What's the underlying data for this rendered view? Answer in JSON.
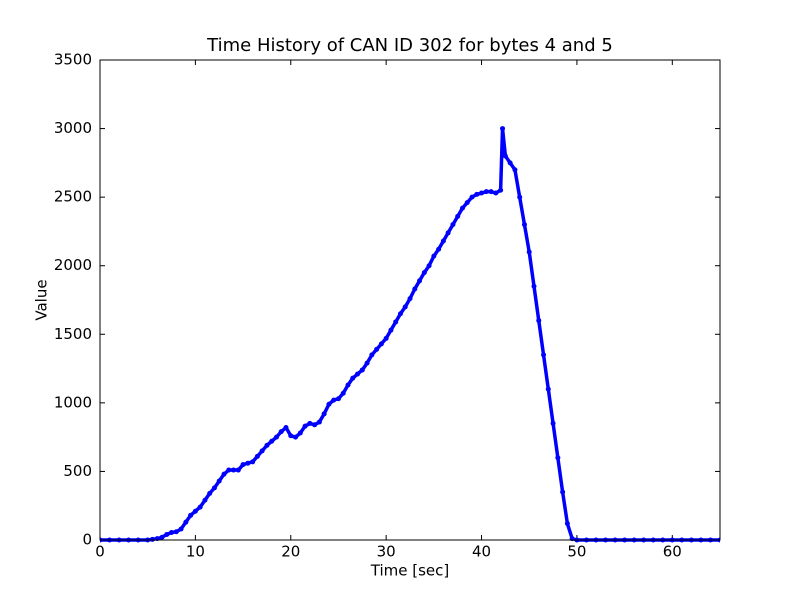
{
  "chart_data": {
    "type": "line",
    "marker": true,
    "title": "Time History of CAN ID 302 for bytes 4 and 5",
    "x_label": "Time [sec]",
    "y_label": "Value",
    "color": "#0000ff",
    "x": [
      0,
      1,
      2,
      3,
      4,
      5,
      5.5,
      6,
      6.5,
      7,
      7.5,
      8,
      8.5,
      9,
      9.5,
      10,
      10.5,
      11,
      11.5,
      12,
      12.5,
      13,
      13.5,
      14,
      14.5,
      15,
      15.5,
      16,
      16.5,
      17,
      17.5,
      18,
      18.5,
      19,
      19.5,
      20,
      20.5,
      21,
      21.5,
      22,
      22.5,
      23,
      23.5,
      24,
      24.5,
      25,
      25.5,
      26,
      26.5,
      27,
      27.5,
      28,
      28.5,
      29,
      29.5,
      30,
      30.5,
      31,
      31.5,
      32,
      32.5,
      33,
      33.5,
      34,
      34.5,
      35,
      35.5,
      36,
      36.5,
      37,
      37.5,
      38,
      38.5,
      39,
      39.5,
      40,
      40.5,
      41,
      41.5,
      42,
      42.2,
      42.5,
      43,
      43.5,
      44,
      44.5,
      45,
      45.5,
      46,
      46.5,
      47,
      47.5,
      48,
      48.5,
      49,
      49.5,
      50,
      51,
      52,
      53,
      54,
      55,
      56,
      57,
      58,
      59,
      60,
      61,
      62,
      63,
      64,
      65
    ],
    "values": [
      0,
      0,
      0,
      0,
      0,
      0,
      5,
      10,
      20,
      40,
      55,
      60,
      80,
      130,
      180,
      210,
      240,
      290,
      340,
      380,
      430,
      480,
      510,
      510,
      510,
      550,
      560,
      570,
      610,
      650,
      690,
      720,
      750,
      790,
      820,
      760,
      750,
      780,
      830,
      850,
      840,
      860,
      920,
      990,
      1020,
      1030,
      1070,
      1130,
      1180,
      1210,
      1240,
      1290,
      1350,
      1390,
      1430,
      1470,
      1530,
      1590,
      1650,
      1700,
      1760,
      1830,
      1890,
      1950,
      2000,
      2070,
      2120,
      2180,
      2240,
      2300,
      2360,
      2420,
      2460,
      2500,
      2520,
      2530,
      2540,
      2540,
      2530,
      2550,
      3000,
      2800,
      2750,
      2700,
      2500,
      2300,
      2100,
      1850,
      1600,
      1350,
      1100,
      850,
      600,
      350,
      120,
      10,
      0,
      0,
      0,
      0,
      0,
      0,
      0,
      0,
      0,
      0,
      0,
      0,
      0,
      0,
      0,
      0
    ],
    "xlim": [
      0,
      65
    ],
    "ylim": [
      0,
      3500
    ],
    "xticks": [
      0,
      10,
      20,
      30,
      40,
      50,
      60
    ],
    "yticks": [
      0,
      500,
      1000,
      1500,
      2000,
      2500,
      3000,
      3500
    ]
  }
}
